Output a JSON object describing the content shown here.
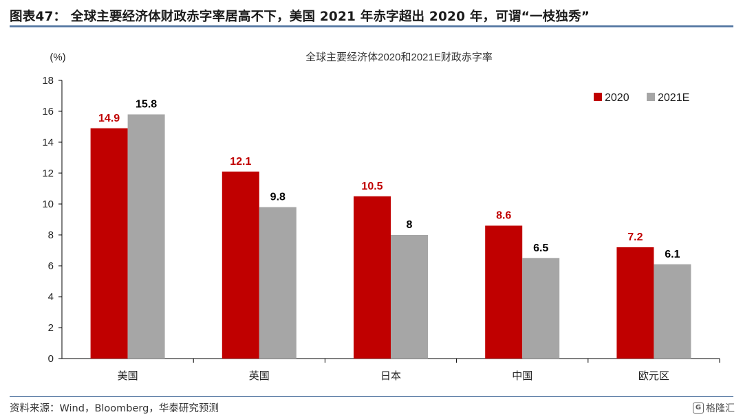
{
  "figure": {
    "title": "图表47：  全球主要经济体财政赤字率居高不下，美国 2021 年赤字超出 2020 年，可谓“一枝独秀”",
    "source": "资料来源：Wind，Bloomberg，华泰研究预测",
    "watermark": "格隆汇"
  },
  "chart_data": {
    "type": "bar",
    "title": "全球主要经济体2020和2021E财政赤字率",
    "ylabel": "(%)",
    "xlabel": "",
    "categories": [
      "美国",
      "英国",
      "日本",
      "中国",
      "欧元区"
    ],
    "series": [
      {
        "name": "2020",
        "values": [
          14.9,
          12.1,
          10.5,
          8.6,
          7.2
        ],
        "color": "#c00000",
        "label_color": "#c00000",
        "labels": [
          "14.9",
          "12.1",
          "10.5",
          "8.6",
          "7.2"
        ]
      },
      {
        "name": "2021E",
        "values": [
          15.8,
          9.8,
          8,
          6.5,
          6.1
        ],
        "color": "#a6a6a6",
        "label_color": "#000000",
        "labels": [
          "15.8",
          "9.8",
          "8",
          "6.5",
          "6.1"
        ]
      }
    ],
    "ylim": [
      0,
      18
    ],
    "yticks": [
      "0",
      "2",
      "4",
      "6",
      "8",
      "10",
      "12",
      "14",
      "16",
      "18"
    ],
    "grid": false,
    "legend_position": "top-right"
  }
}
